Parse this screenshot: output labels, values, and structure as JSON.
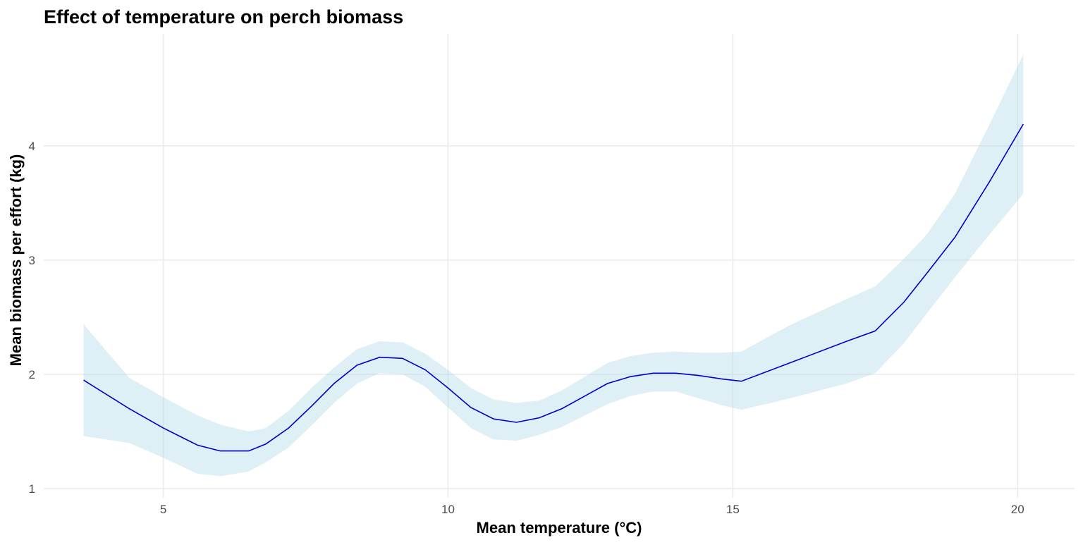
{
  "chart_data": {
    "type": "line",
    "title": "Effect of temperature on perch biomass",
    "xlabel": "Mean temperature (°C)",
    "ylabel": "Mean biomass per effort (kg)",
    "xlim": [
      2.9,
      21.0
    ],
    "ylim": [
      0.92,
      4.98
    ],
    "x_ticks": [
      5,
      10,
      15,
      20
    ],
    "y_ticks": [
      1,
      2,
      3,
      4
    ],
    "x_tick_labels": [
      "5",
      "10",
      "15",
      "20"
    ],
    "y_tick_labels": [
      "1",
      "2",
      "3",
      "4"
    ],
    "grid": true,
    "legend": "none",
    "colors": {
      "line": "#0000c8",
      "ribbon": "#add8e6"
    },
    "series": [
      {
        "x": [
          3.6,
          4.4,
          5.0,
          5.6,
          6.0,
          6.5,
          6.8,
          7.2,
          7.6,
          8.0,
          8.4,
          8.8,
          9.2,
          9.6,
          10.0,
          10.4,
          10.8,
          11.2,
          11.6,
          12.0,
          12.4,
          12.8,
          13.2,
          13.6,
          14.0,
          14.4,
          14.8,
          15.15,
          16.0,
          17.0,
          17.5,
          18.0,
          18.4,
          18.9,
          19.5,
          20.1
        ],
        "y": [
          1.95,
          1.7,
          1.53,
          1.38,
          1.33,
          1.33,
          1.39,
          1.53,
          1.72,
          1.92,
          2.08,
          2.15,
          2.14,
          2.04,
          1.88,
          1.71,
          1.61,
          1.58,
          1.62,
          1.7,
          1.81,
          1.92,
          1.98,
          2.01,
          2.01,
          1.99,
          1.96,
          1.94,
          2.1,
          2.29,
          2.38,
          2.63,
          2.88,
          3.2,
          3.68,
          4.19
        ],
        "lower": [
          1.46,
          1.4,
          1.27,
          1.13,
          1.11,
          1.15,
          1.23,
          1.36,
          1.55,
          1.75,
          1.92,
          2.01,
          2.0,
          1.89,
          1.71,
          1.53,
          1.43,
          1.42,
          1.47,
          1.54,
          1.64,
          1.74,
          1.81,
          1.85,
          1.85,
          1.79,
          1.73,
          1.69,
          1.79,
          1.92,
          2.01,
          2.27,
          2.53,
          2.85,
          3.22,
          3.58
        ],
        "upper": [
          2.44,
          1.97,
          1.8,
          1.64,
          1.56,
          1.5,
          1.53,
          1.68,
          1.88,
          2.06,
          2.22,
          2.29,
          2.28,
          2.18,
          2.04,
          1.88,
          1.78,
          1.75,
          1.77,
          1.86,
          1.98,
          2.1,
          2.16,
          2.19,
          2.2,
          2.19,
          2.19,
          2.2,
          2.43,
          2.66,
          2.77,
          3.01,
          3.22,
          3.58,
          4.18,
          4.8
        ]
      }
    ]
  }
}
